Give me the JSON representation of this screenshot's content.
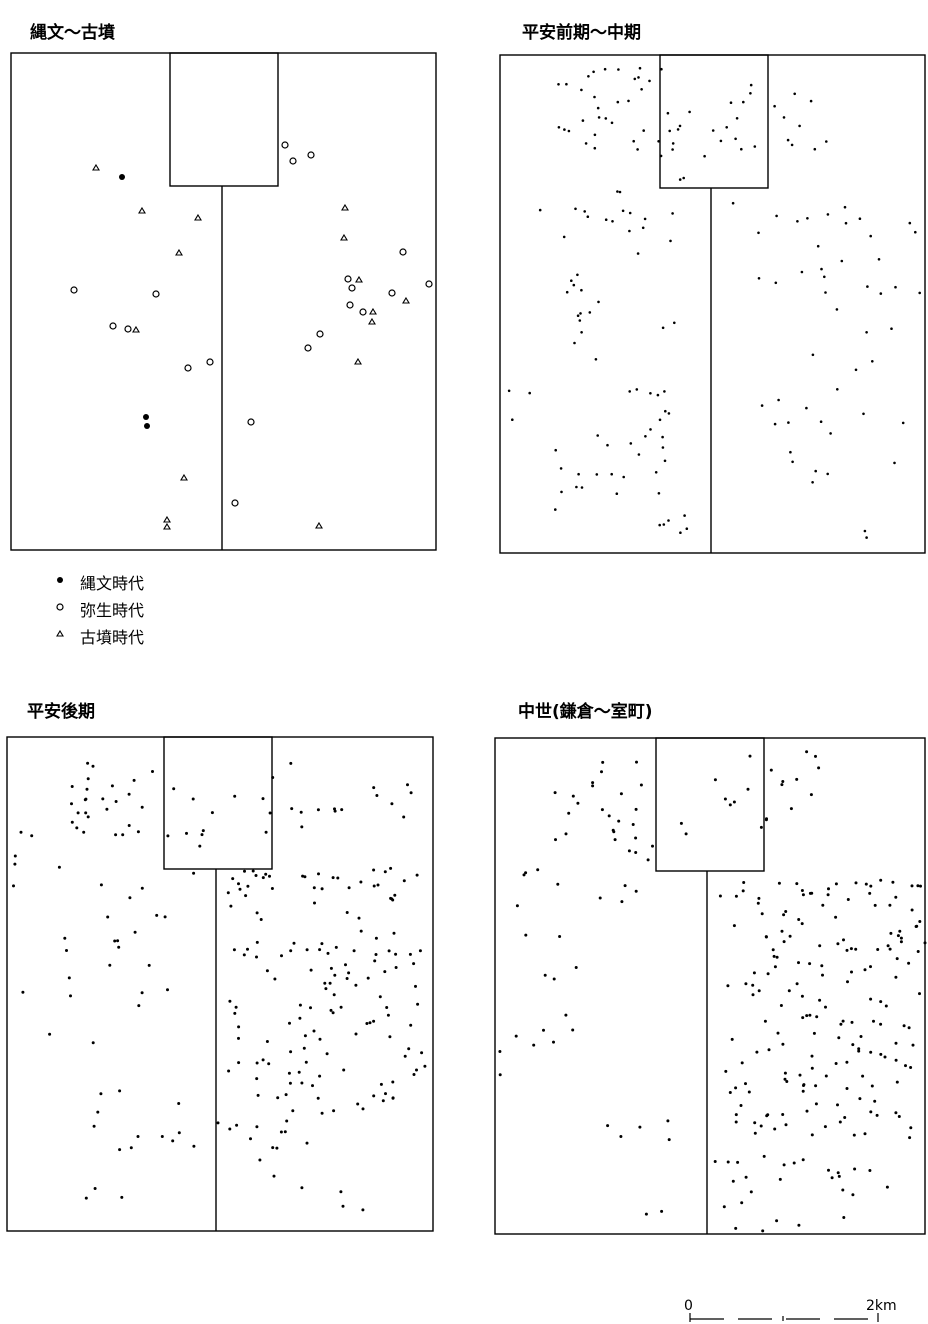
{
  "panels": [
    {
      "title": "縄文～古墳"
    },
    {
      "title": "平安前期～中期"
    },
    {
      "title": "平安後期"
    },
    {
      "title": "中世(鎌倉～室町)"
    }
  ],
  "legend": [
    {
      "label": "縄文時代",
      "symbol": "filled-circle"
    },
    {
      "label": "弥生時代",
      "symbol": "open-circle"
    },
    {
      "label": "古墳時代",
      "symbol": "triangle"
    }
  ],
  "scale": {
    "start": "0",
    "end": "2km"
  }
}
